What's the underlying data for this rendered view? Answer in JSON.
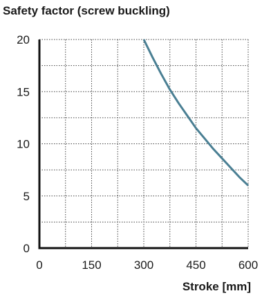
{
  "chart_data": {
    "type": "line",
    "title": "Safety factor (screw buckling)",
    "xlabel": "Stroke [mm]",
    "ylabel": "",
    "xlim": [
      0,
      600
    ],
    "ylim": [
      0,
      20
    ],
    "x_ticks": [
      0,
      150,
      300,
      450,
      600
    ],
    "y_ticks": [
      0,
      5,
      10,
      15,
      20
    ],
    "x_grid": [
      0,
      75,
      150,
      225,
      300,
      375,
      450,
      525,
      600
    ],
    "y_grid": [
      0,
      2.5,
      5,
      7.5,
      10,
      12.5,
      15,
      17.5,
      20
    ],
    "grid": true,
    "series": [
      {
        "name": "",
        "color": "#4a7f93",
        "x": [
          300,
          325,
          350,
          375,
          400,
          425,
          450,
          475,
          500,
          525,
          550,
          575,
          600
        ],
        "y": [
          20.0,
          18.3,
          16.7,
          15.2,
          13.9,
          12.7,
          11.5,
          10.5,
          9.5,
          8.6,
          7.7,
          6.8,
          6.0
        ]
      }
    ]
  }
}
